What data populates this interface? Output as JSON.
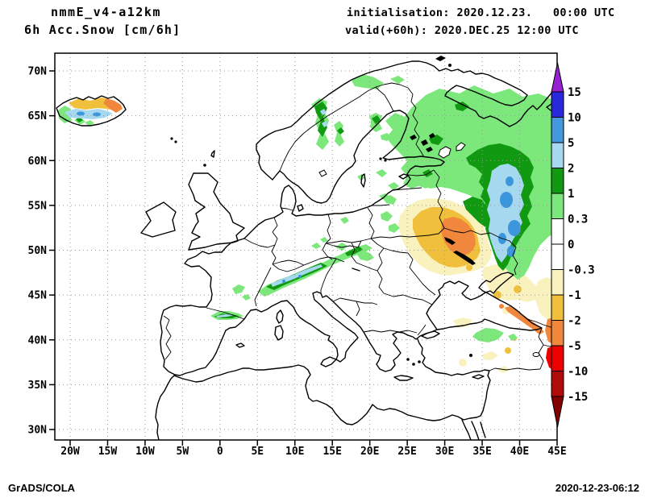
{
  "header": {
    "model_line": "nmmE_v4-a12km",
    "variable_line": "6h Acc.Snow [cm/6h]",
    "init_line": "initialisation: 2020.12.23.   00:00 UTC",
    "valid_line": "valid(+60h): 2020.DEC.25 12:00 UTC"
  },
  "axes": {
    "lat_labels": [
      "70N",
      "65N",
      "60N",
      "55N",
      "50N",
      "45N",
      "40N",
      "35N",
      "30N"
    ],
    "lon_labels": [
      "20W",
      "15W",
      "10W",
      "5W",
      "0",
      "5E",
      "10E",
      "15E",
      "20E",
      "25E",
      "30E",
      "35E",
      "40E",
      "45E"
    ]
  },
  "colorbar": {
    "tick_labels": [
      "15",
      "10",
      "5",
      "2",
      "1",
      "0.3",
      "0",
      "-0.3",
      "-1",
      "-2",
      "-5",
      "-10",
      "-15"
    ],
    "segment_colors": [
      "#2828DC",
      "#4499DD",
      "#A6D8F0",
      "#119A11",
      "#7CE87C",
      "#FFFFFF",
      "#FFFFFF",
      "#FAF2BE",
      "#F0C03C",
      "#F0873C",
      "#EE0000",
      "#B00A0A"
    ],
    "over_arrow_color": "#9620D2",
    "under_arrow_color": "#820000"
  },
  "palette": {
    "light_green": "#7CE87C",
    "dark_green": "#119A11",
    "light_blue": "#A6D8F0",
    "mid_blue": "#3B96DC",
    "pale_yellow": "#FAF2BE",
    "gold": "#F0C03C",
    "orange": "#F0873C",
    "red": "#EE0000"
  },
  "footer": {
    "credit": "GrADS/COLA",
    "timestamp": "2020-12-23-06:12"
  }
}
